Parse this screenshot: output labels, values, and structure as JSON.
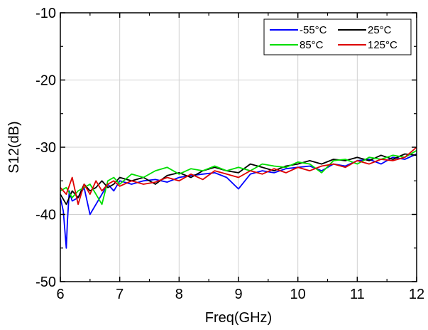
{
  "chart_data": {
    "type": "line",
    "title": "",
    "xlabel": "Freq(GHz)",
    "ylabel": "S12(dB)",
    "xlim": [
      6,
      12
    ],
    "ylim": [
      -50,
      -10
    ],
    "x_ticks": [
      6,
      7,
      8,
      9,
      10,
      11,
      12
    ],
    "x_tick_labels": [
      "6",
      "7",
      "8",
      "9",
      "10",
      "11",
      "12"
    ],
    "y_ticks": [
      -50,
      -40,
      -30,
      -20,
      -10
    ],
    "y_tick_labels": [
      "-50",
      "-40",
      "-30",
      "-20",
      "-10"
    ],
    "grid": true,
    "legend_position": "top-right",
    "series": [
      {
        "name": "-55°C",
        "color": "#0000ff",
        "x": [
          6.0,
          6.05,
          6.1,
          6.12,
          6.15,
          6.2,
          6.3,
          6.4,
          6.5,
          6.6,
          6.7,
          6.8,
          6.9,
          7.0,
          7.2,
          7.4,
          7.6,
          7.8,
          8.0,
          8.2,
          8.4,
          8.6,
          8.8,
          9.0,
          9.2,
          9.4,
          9.6,
          9.8,
          10.0,
          10.2,
          10.4,
          10.6,
          10.8,
          11.0,
          11.2,
          11.4,
          11.6,
          11.8,
          12.0
        ],
        "y": [
          -37.5,
          -39.5,
          -45.0,
          -41.0,
          -36.5,
          -38.0,
          -37.5,
          -36.0,
          -40.0,
          -38.5,
          -37.0,
          -35.5,
          -36.5,
          -35.0,
          -35.5,
          -35.0,
          -34.8,
          -35.2,
          -34.5,
          -34.2,
          -34.0,
          -33.8,
          -34.5,
          -36.2,
          -34.0,
          -33.5,
          -33.8,
          -33.2,
          -33.0,
          -32.8,
          -33.5,
          -32.5,
          -32.8,
          -32.0,
          -31.8,
          -32.5,
          -31.5,
          -31.8,
          -31.0
        ]
      },
      {
        "name": "25°C",
        "color": "#000000",
        "x": [
          6.0,
          6.1,
          6.2,
          6.3,
          6.4,
          6.5,
          6.6,
          6.7,
          6.8,
          6.9,
          7.0,
          7.2,
          7.4,
          7.6,
          7.8,
          8.0,
          8.2,
          8.4,
          8.6,
          8.8,
          9.0,
          9.2,
          9.4,
          9.6,
          9.8,
          10.0,
          10.2,
          10.4,
          10.6,
          10.8,
          11.0,
          11.2,
          11.4,
          11.6,
          11.8,
          12.0
        ],
        "y": [
          -37.0,
          -38.5,
          -36.5,
          -37.5,
          -35.5,
          -36.5,
          -36.0,
          -35.0,
          -36.0,
          -35.5,
          -34.5,
          -35.0,
          -34.5,
          -35.5,
          -34.2,
          -33.8,
          -34.5,
          -33.5,
          -33.0,
          -33.5,
          -33.8,
          -32.5,
          -33.0,
          -33.5,
          -32.8,
          -32.5,
          -32.0,
          -32.5,
          -31.8,
          -32.0,
          -31.5,
          -32.0,
          -31.2,
          -31.8,
          -31.0,
          -31.2
        ]
      },
      {
        "name": "85°C",
        "color": "#00dd00",
        "x": [
          6.0,
          6.1,
          6.2,
          6.3,
          6.4,
          6.5,
          6.6,
          6.7,
          6.8,
          6.9,
          7.0,
          7.2,
          7.4,
          7.6,
          7.8,
          8.0,
          8.2,
          8.4,
          8.6,
          8.8,
          9.0,
          9.2,
          9.4,
          9.6,
          9.8,
          10.0,
          10.2,
          10.4,
          10.6,
          10.8,
          11.0,
          11.2,
          11.4,
          11.6,
          11.8,
          12.0
        ],
        "y": [
          -36.5,
          -36.0,
          -37.5,
          -36.5,
          -36.0,
          -35.5,
          -37.0,
          -38.5,
          -35.0,
          -34.5,
          -35.5,
          -34.0,
          -34.5,
          -33.5,
          -33.0,
          -34.0,
          -33.2,
          -33.5,
          -32.8,
          -33.5,
          -33.0,
          -33.5,
          -32.5,
          -32.8,
          -33.0,
          -32.2,
          -32.5,
          -33.8,
          -32.0,
          -31.8,
          -32.5,
          -31.5,
          -31.8,
          -31.2,
          -31.5,
          -30.5
        ]
      },
      {
        "name": "125°C",
        "color": "#dd0000",
        "x": [
          6.0,
          6.1,
          6.2,
          6.3,
          6.4,
          6.5,
          6.6,
          6.7,
          6.8,
          6.9,
          7.0,
          7.2,
          7.4,
          7.6,
          7.8,
          8.0,
          8.2,
          8.4,
          8.6,
          8.8,
          9.0,
          9.2,
          9.4,
          9.6,
          9.8,
          10.0,
          10.2,
          10.4,
          10.6,
          10.8,
          11.0,
          11.2,
          11.4,
          11.6,
          11.8,
          12.0
        ],
        "y": [
          -36.0,
          -37.0,
          -34.5,
          -38.5,
          -35.5,
          -37.0,
          -35.0,
          -36.5,
          -35.5,
          -35.0,
          -35.8,
          -35.0,
          -35.5,
          -35.2,
          -34.5,
          -35.0,
          -34.0,
          -34.8,
          -33.5,
          -34.0,
          -34.5,
          -33.5,
          -34.0,
          -33.2,
          -33.8,
          -33.0,
          -33.5,
          -32.8,
          -32.5,
          -33.0,
          -32.0,
          -32.5,
          -31.8,
          -32.0,
          -31.5,
          -30.0
        ]
      }
    ]
  }
}
